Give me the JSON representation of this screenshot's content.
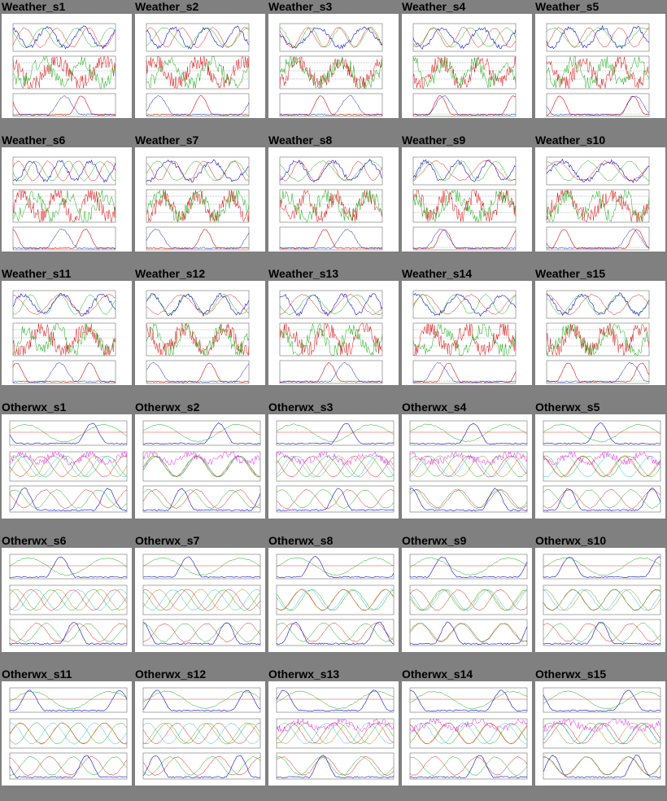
{
  "weather_plots": [
    "Weather_s1",
    "Weather_s2",
    "Weather_s3",
    "Weather_s4",
    "Weather_s5",
    "Weather_s6",
    "Weather_s7",
    "Weather_s8",
    "Weather_s9",
    "Weather_s10",
    "Weather_s11",
    "Weather_s12",
    "Weather_s13",
    "Weather_s14",
    "Weather_s15"
  ],
  "otherwx_plots": [
    "Otherwx_s1",
    "Otherwx_s2",
    "Otherwx_s3",
    "Otherwx_s4",
    "Otherwx_s5",
    "Otherwx_s6",
    "Otherwx_s7",
    "Otherwx_s8",
    "Otherwx_s9",
    "Otherwx_s10",
    "Otherwx_s11",
    "Otherwx_s12",
    "Otherwx_s13",
    "Otherwx_s14",
    "Otherwx_s15"
  ],
  "colors": {
    "page_background": "#808080",
    "thumbnail_background": "#ffffff",
    "series_blue": "#1010cc",
    "series_red": "#dd1111",
    "series_green": "#11aa11",
    "series_cyan": "#22bbdd",
    "series_magenta": "#ee22ee",
    "series_olive": "#998800"
  }
}
